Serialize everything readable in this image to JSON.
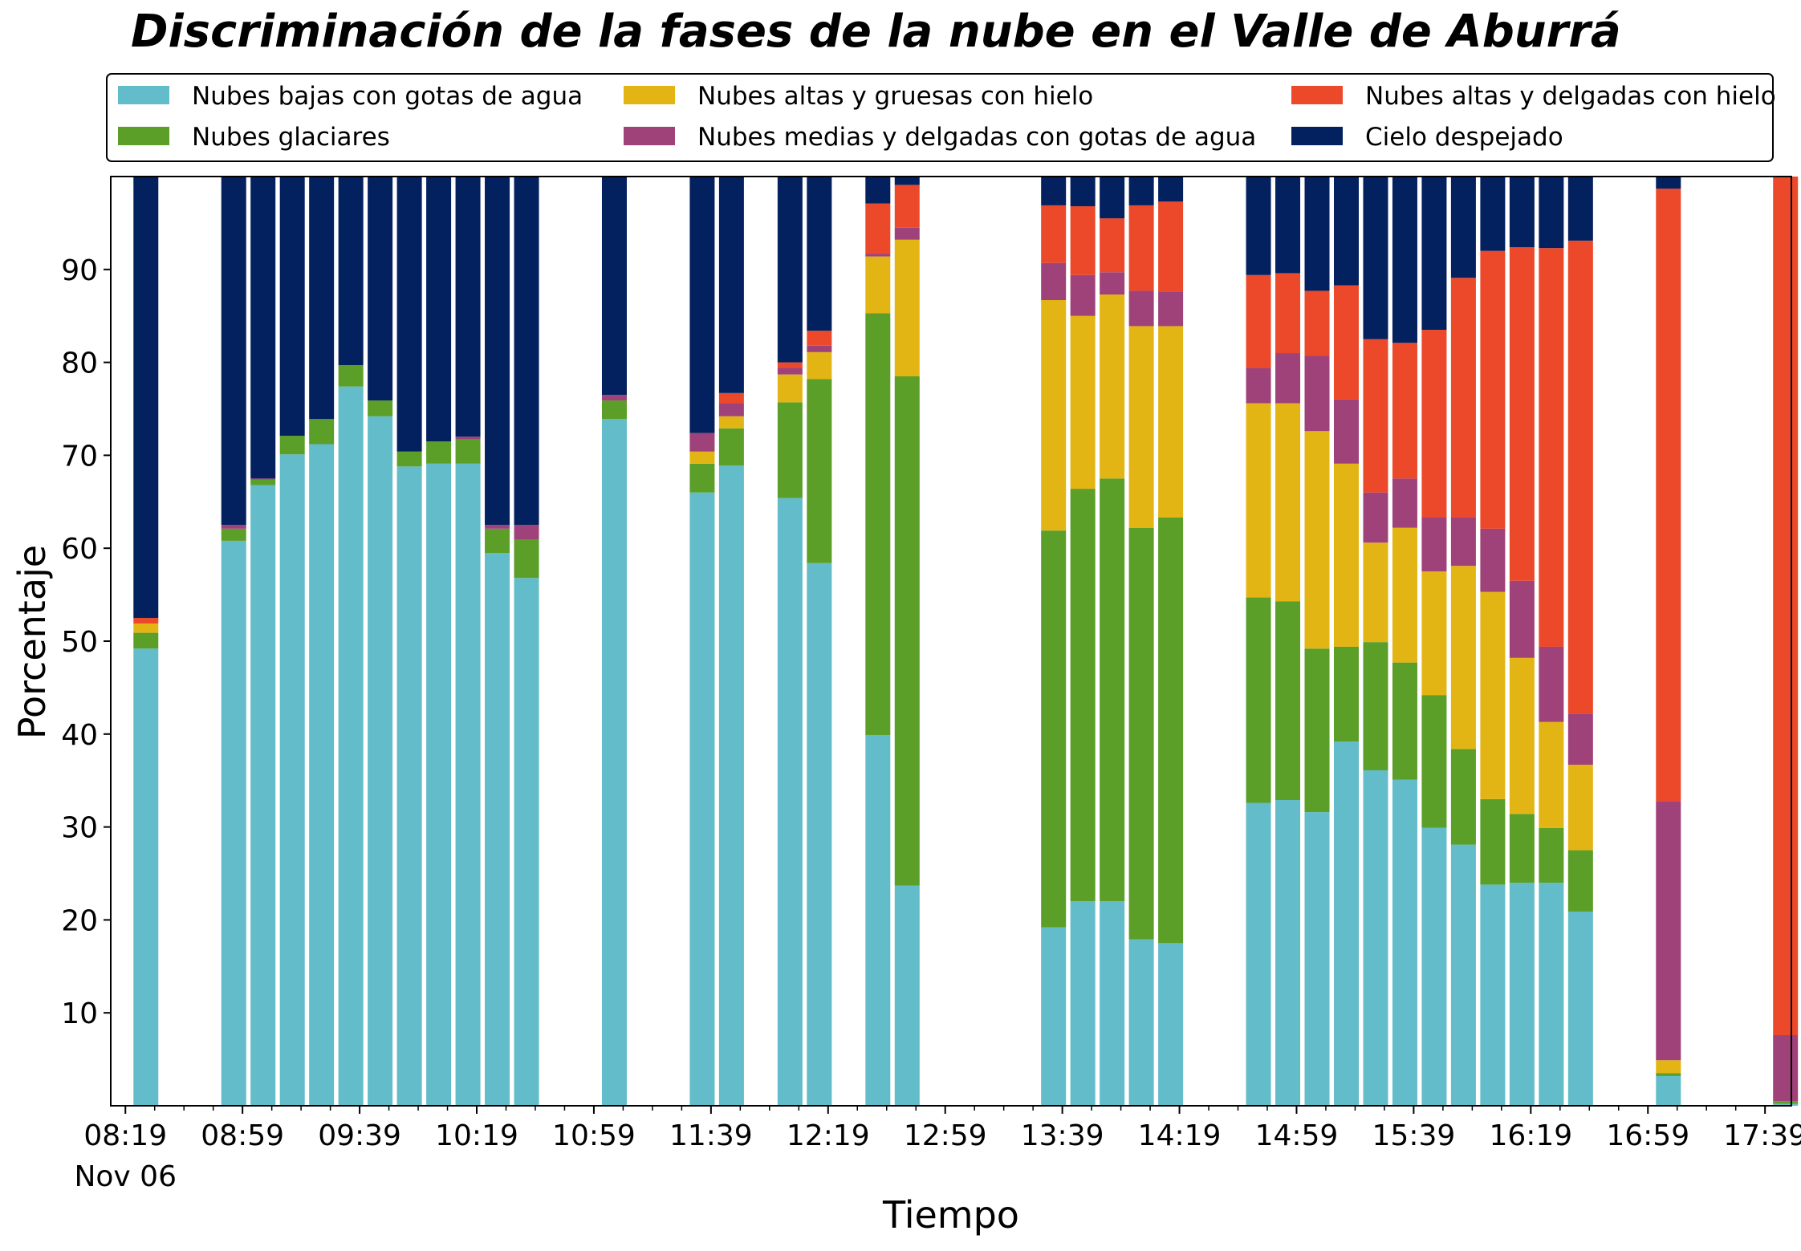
{
  "chart_data": {
    "type": "bar",
    "stacked": true,
    "title": "Discriminación de la fases de la nube en el Valle de Aburrá",
    "xlabel": "Tiempo",
    "ylabel": "Porcentaje",
    "ylim": [
      0,
      100
    ],
    "y_ticks": [
      "10",
      "20",
      "30",
      "40",
      "50",
      "60",
      "70",
      "80",
      "90"
    ],
    "x_tick_labels": [
      "08:19",
      "08:59",
      "09:39",
      "10:19",
      "10:59",
      "11:39",
      "12:19",
      "12:59",
      "13:39",
      "14:19",
      "14:59",
      "15:39",
      "16:19",
      "16:59",
      "17:39"
    ],
    "x_date_label": "Nov 06",
    "x_range": [
      "08:14",
      "17:48"
    ],
    "bar_width_minutes": 8.5,
    "legend_placement": "top, above plot, 3 columns",
    "grid": false,
    "times": [
      "08:26",
      "08:56",
      "09:06",
      "09:16",
      "09:26",
      "09:36",
      "09:46",
      "09:56",
      "10:06",
      "10:16",
      "10:26",
      "10:36",
      "11:06",
      "11:36",
      "11:46",
      "12:06",
      "12:16",
      "12:36",
      "12:46",
      "13:36",
      "13:46",
      "13:56",
      "14:06",
      "14:16",
      "14:46",
      "14:56",
      "15:06",
      "15:16",
      "15:26",
      "15:36",
      "15:46",
      "15:56",
      "16:06",
      "16:16",
      "16:26",
      "16:36",
      "17:06",
      "17:46"
    ],
    "series": [
      {
        "name": "Nubes bajas con gotas de agua",
        "color": "#63bcc9",
        "values": [
          49.2,
          60.8,
          66.8,
          70.1,
          71.2,
          77.4,
          74.2,
          68.8,
          69.1,
          69.1,
          59.5,
          56.8,
          73.9,
          66.0,
          68.9,
          65.4,
          58.4,
          39.9,
          23.7,
          19.2,
          22.0,
          22.0,
          17.9,
          17.5,
          32.6,
          32.9,
          31.6,
          39.2,
          36.1,
          35.1,
          29.9,
          28.1,
          23.8,
          24.0,
          24.0,
          20.9,
          3.2,
          0.2
        ]
      },
      {
        "name": "Nubes glaciares",
        "color": "#5b9e28",
        "values": [
          1.7,
          1.3,
          0.6,
          2.0,
          2.7,
          2.3,
          1.7,
          1.6,
          2.4,
          2.6,
          2.6,
          4.1,
          2.0,
          3.1,
          4.0,
          10.3,
          19.8,
          45.4,
          54.8,
          42.7,
          44.4,
          45.5,
          44.3,
          45.8,
          22.1,
          21.4,
          17.6,
          10.2,
          13.8,
          12.6,
          14.3,
          10.3,
          9.2,
          7.4,
          5.9,
          6.6,
          0.3,
          0.3
        ]
      },
      {
        "name": "Nubes altas y gruesas con hielo",
        "color": "#e3b514",
        "values": [
          1.0,
          0,
          0,
          0,
          0,
          0,
          0,
          0,
          0,
          0,
          0,
          0,
          0,
          1.3,
          1.3,
          3.0,
          2.9,
          6.1,
          14.7,
          24.8,
          18.6,
          19.8,
          21.7,
          20.6,
          20.9,
          21.3,
          23.4,
          19.7,
          10.7,
          14.5,
          13.3,
          19.7,
          22.3,
          16.8,
          11.4,
          9.2,
          1.4,
          0
        ]
      },
      {
        "name": "Nubes medias y delgadas con gotas de agua",
        "color": "#a0427a",
        "values": [
          0,
          0.4,
          0.1,
          0,
          0,
          0,
          0,
          0,
          0,
          0.3,
          0.4,
          1.6,
          0.6,
          2.0,
          1.4,
          0.7,
          0.7,
          0.3,
          1.3,
          4.0,
          4.4,
          2.4,
          3.8,
          3.7,
          3.8,
          5.4,
          8.1,
          6.9,
          5.4,
          5.3,
          5.8,
          5.2,
          6.8,
          8.3,
          8.1,
          5.5,
          27.9,
          7.1
        ]
      },
      {
        "name": "Nubes altas y delgadas con hielo",
        "color": "#ec482a",
        "values": [
          0.6,
          0,
          0,
          0,
          0,
          0,
          0,
          0,
          0,
          0,
          0,
          0,
          0,
          0,
          1.1,
          0.6,
          1.6,
          5.4,
          4.6,
          6.2,
          7.4,
          5.8,
          9.2,
          9.7,
          10.0,
          8.6,
          7.0,
          12.3,
          16.5,
          14.6,
          20.2,
          25.8,
          29.9,
          35.9,
          42.9,
          50.9,
          65.9,
          92.4
        ]
      },
      {
        "name": "Cielo despejado",
        "color": "#03205f",
        "values": [
          47.5,
          37.5,
          32.5,
          27.9,
          26.1,
          20.3,
          24.1,
          29.6,
          28.5,
          28.0,
          37.5,
          37.5,
          23.5,
          27.6,
          23.3,
          20.0,
          16.6,
          2.9,
          0.9,
          3.1,
          3.2,
          4.5,
          3.1,
          2.7,
          10.6,
          10.4,
          12.3,
          11.7,
          17.5,
          17.9,
          16.5,
          10.9,
          8.0,
          7.6,
          7.7,
          6.9,
          1.3,
          0
        ]
      }
    ]
  }
}
